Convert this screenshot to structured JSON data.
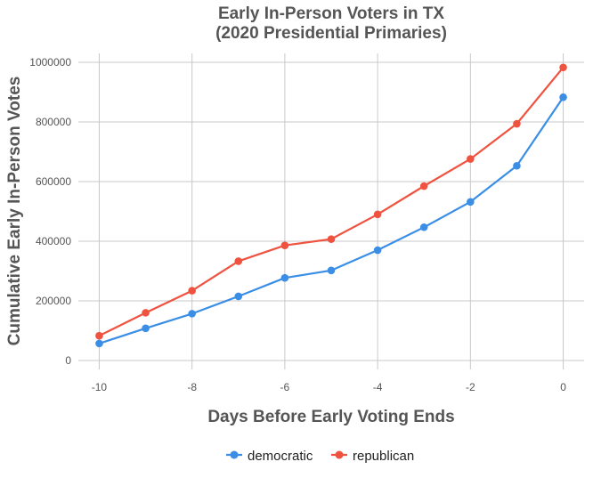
{
  "chart_data": {
    "type": "line",
    "title_lines": [
      "Early In-Person Voters in TX",
      "(2020 Presidential Primaries)"
    ],
    "xlabel": "Days Before Early Voting Ends",
    "ylabel": "Cumulative Early In-Person Votes",
    "x": [
      -10,
      -9,
      -8,
      -7,
      -6,
      -5,
      -4,
      -3,
      -2,
      -1,
      0
    ],
    "xlim": [
      -10.45,
      0.45
    ],
    "ylim": [
      -30000,
      1030000
    ],
    "x_ticks": [
      -10,
      -8,
      -6,
      -4,
      -2,
      0
    ],
    "x_tick_labels": [
      "-10",
      "-8",
      "-6",
      "-4",
      "-2",
      "0"
    ],
    "y_ticks": [
      0,
      200000,
      400000,
      600000,
      800000,
      1000000
    ],
    "y_tick_labels": [
      "0",
      "200000",
      "400000",
      "600000",
      "800000",
      "1000000"
    ],
    "grid": true,
    "legend_position": "bottom",
    "series": [
      {
        "name": "democratic",
        "color": "#3a8ee6",
        "values": [
          57000,
          108000,
          157000,
          215000,
          277000,
          302000,
          370000,
          447000,
          532000,
          653000,
          883000
        ]
      },
      {
        "name": "republican",
        "color": "#ef5340",
        "values": [
          83000,
          160000,
          234000,
          333000,
          386000,
          407000,
          490000,
          585000,
          676000,
          794000,
          983000
        ]
      }
    ]
  }
}
